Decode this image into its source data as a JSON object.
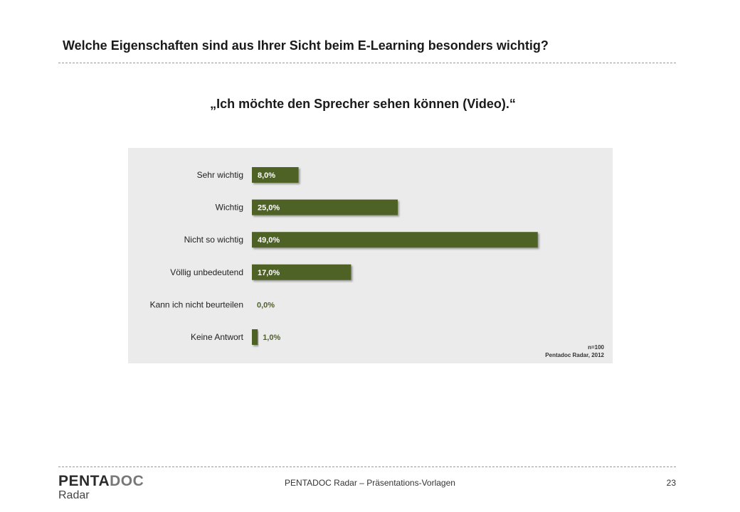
{
  "slide": {
    "title": "Welche Eigenschaften sind aus Ihrer Sicht beim E-Learning besonders wichtig?"
  },
  "chart_data": {
    "type": "bar",
    "orientation": "horizontal",
    "title": "„Ich möchte den Sprecher sehen können (Video).“",
    "categories": [
      "Sehr wichtig",
      "Wichtig",
      "Nicht so wichtig",
      "Völlig unbedeutend",
      "Kann ich nicht beurteilen",
      "Keine Antwort"
    ],
    "values": [
      8.0,
      25.0,
      49.0,
      17.0,
      0.0,
      1.0
    ],
    "value_labels": [
      "8,0%",
      "25,0%",
      "49,0%",
      "17,0%",
      "0,0%",
      "1,0%"
    ],
    "unit": "%",
    "xlim": [
      0,
      50
    ],
    "grid": false,
    "bar_color": "#4f6228",
    "label_inside_color": "#ffffff",
    "label_outside_color": "#4f6228",
    "panel_background": "#ebebeb",
    "notes": [
      "n=100",
      "Pentadoc Radar, 2012"
    ]
  },
  "footer": {
    "logo_main": "PENTA",
    "logo_accent": "DOC",
    "logo_sub": "Radar",
    "text": "PENTADOC Radar – Präsentations-Vorlagen",
    "page_number": "23"
  }
}
